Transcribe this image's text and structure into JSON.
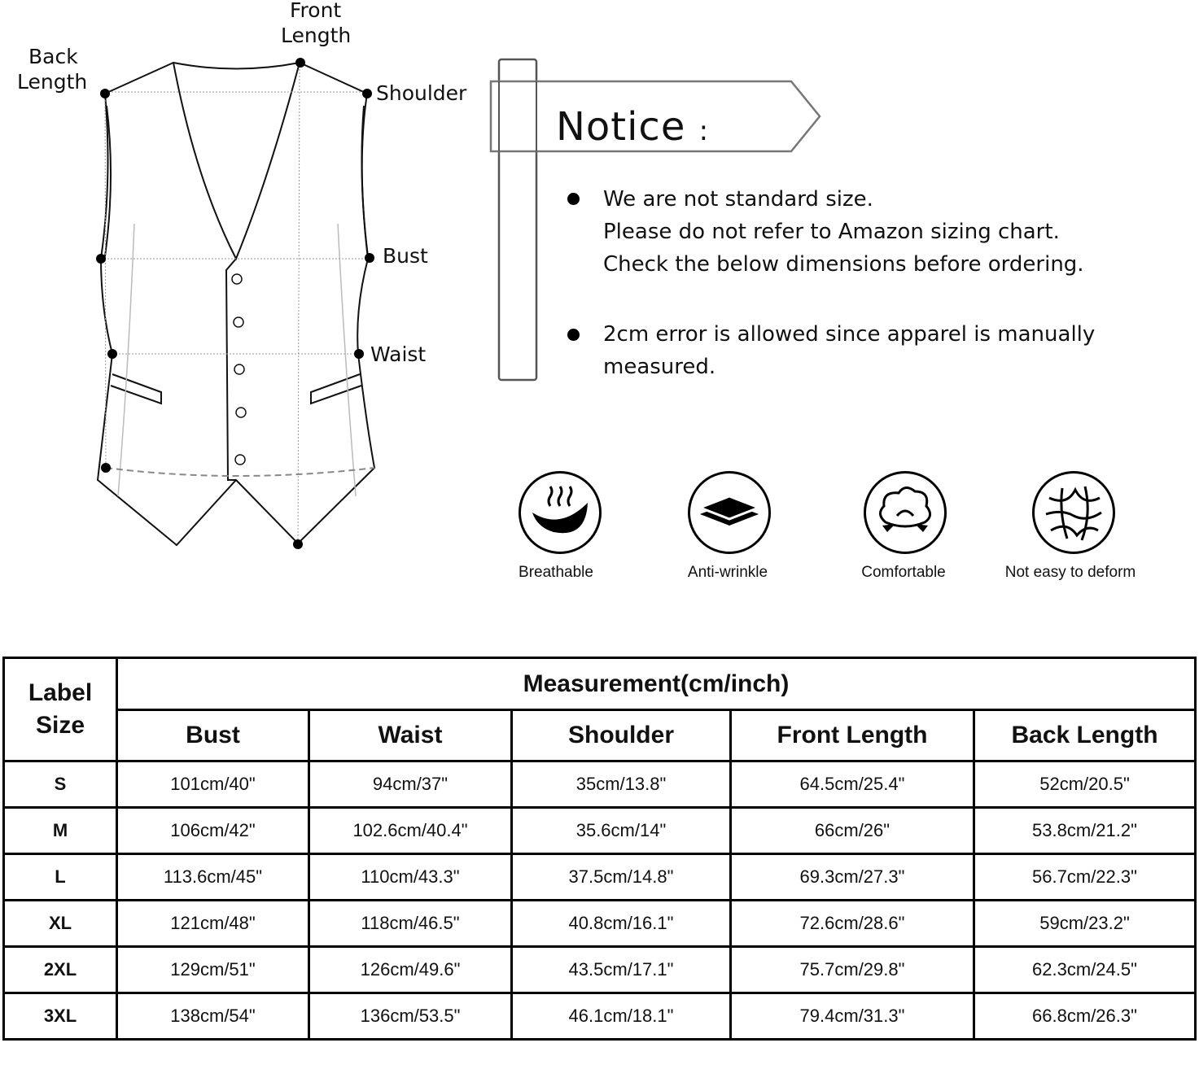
{
  "diagram": {
    "labels": {
      "front_length": [
        "Front",
        "Length"
      ],
      "back_length": [
        "Back",
        "Length"
      ],
      "shoulder": "Shoulder",
      "bust": "Bust",
      "waist": "Waist"
    }
  },
  "notice": {
    "title": "Notice",
    "colon": ":",
    "bullets": [
      {
        "lines": [
          "We are not standard size.",
          "Please do not refer to Amazon sizing chart.",
          "Check the below dimensions before ordering."
        ]
      },
      {
        "lines": [
          "2cm error is allowed since apparel is manually",
          "measured."
        ]
      }
    ]
  },
  "features": [
    {
      "label": "Breathable",
      "icon": "breathable-icon"
    },
    {
      "label": "Anti-wrinkle",
      "icon": "layers-icon"
    },
    {
      "label": "Comfortable",
      "icon": "cotton-icon"
    },
    {
      "label": "Not easy to deform",
      "icon": "fiber-mesh-icon"
    }
  ],
  "size_table": {
    "label_header": [
      "Label",
      "Size"
    ],
    "measurement_header": "Measurement(cm/inch)",
    "columns": [
      "Bust",
      "Waist",
      "Shoulder",
      "Front Length",
      "Back Length"
    ],
    "rows": [
      {
        "size": "S",
        "values": [
          "101cm/40\"",
          "94cm/37\"",
          "35cm/13.8\"",
          "64.5cm/25.4\"",
          "52cm/20.5\""
        ]
      },
      {
        "size": "M",
        "values": [
          "106cm/42\"",
          "102.6cm/40.4\"",
          "35.6cm/14\"",
          "66cm/26\"",
          "53.8cm/21.2\""
        ]
      },
      {
        "size": "L",
        "values": [
          "113.6cm/45\"",
          "110cm/43.3\"",
          "37.5cm/14.8\"",
          "69.3cm/27.3\"",
          "56.7cm/22.3\""
        ]
      },
      {
        "size": "XL",
        "values": [
          "121cm/48\"",
          "118cm/46.5\"",
          "40.8cm/16.1\"",
          "72.6cm/28.6\"",
          "59cm/23.2\""
        ]
      },
      {
        "size": "2XL",
        "values": [
          "129cm/51\"",
          "126cm/49.6\"",
          "43.5cm/17.1\"",
          "75.7cm/29.8\"",
          "62.3cm/24.5\""
        ]
      },
      {
        "size": "3XL",
        "values": [
          "138cm/54\"",
          "136cm/53.5\"",
          "46.1cm/18.1\"",
          "79.4cm/31.3\"",
          "66.8cm/26.3\""
        ]
      }
    ]
  }
}
